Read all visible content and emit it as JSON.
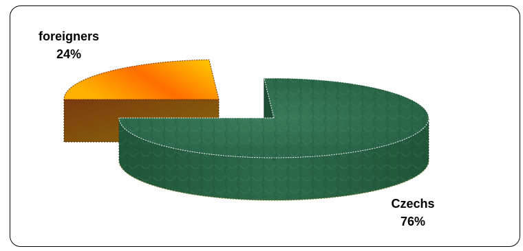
{
  "chart_data": {
    "type": "pie",
    "style": "3d-exploded",
    "title": "",
    "slices": [
      {
        "name": "foreigners",
        "value": 24,
        "label": "24%",
        "color": "#ff7a00"
      },
      {
        "name": "Czechs",
        "value": 76,
        "label": "76%",
        "color": "#2e6b4e"
      }
    ]
  },
  "colors": {
    "foreigners_top_light": "#ffd400",
    "foreigners_top_dark": "#ff5a00",
    "foreigners_side": "#8a4a10",
    "czechs_top": "#2f6e4f",
    "czechs_side": "#1f5236",
    "frame_border": "#000000"
  }
}
